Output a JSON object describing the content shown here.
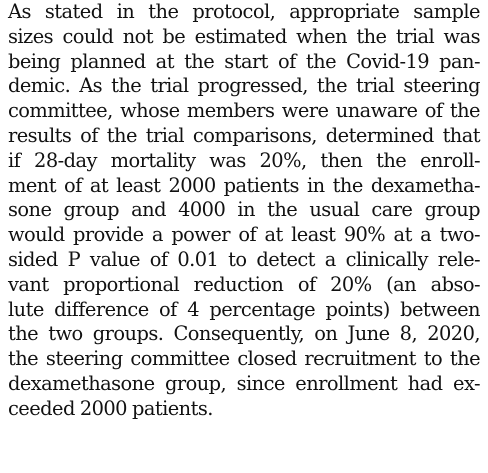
{
  "paper": {
    "lines": [
      "As stated in the protocol, appropriate sample",
      "sizes could not be estimated when the trial was",
      "being planned at the start of the Covid-19 pan-",
      "demic. As the trial progressed, the trial steering",
      "committee, whose members were unaware of the",
      "results of the trial comparisons, determined that",
      "if 28-day mortality was 20%, then the enroll-",
      "ment of at least 2000 patients in the dexametha-",
      "sone group and 4000 in the usual care group",
      "would provide a power of at least 90% at a two-",
      "sided P value of 0.01 to detect a clinically rele-",
      "vant proportional reduction of 20% (an abso-",
      "lute difference of 4 percentage points) between",
      "the two groups. Consequently, on June 8, 2020,",
      "the steering committee closed recruitment to the",
      "dexamethasone group, since enrollment had ex-",
      "ceeded 2000 patients."
    ]
  }
}
